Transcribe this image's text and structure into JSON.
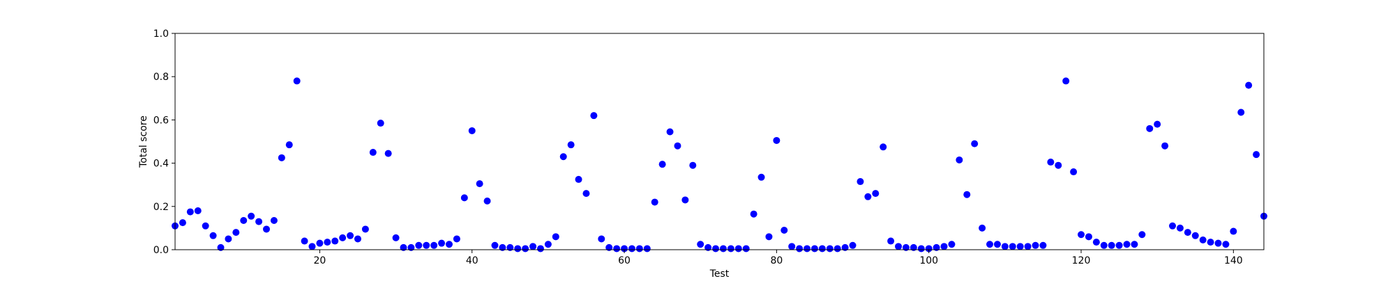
{
  "chart_data": {
    "type": "scatter",
    "title": "",
    "xlabel": "Test",
    "ylabel": "Total score",
    "xlim": [
      1,
      144
    ],
    "ylim": [
      0.0,
      1.0
    ],
    "xticks": [
      20,
      40,
      60,
      80,
      100,
      120,
      140
    ],
    "yticks": [
      0.0,
      0.2,
      0.4,
      0.6,
      0.8,
      1.0
    ],
    "grid": false,
    "marker_color": "#0000ff",
    "series": [
      {
        "x": [
          1,
          2,
          3,
          4,
          5,
          6,
          7,
          8,
          9,
          10,
          11,
          12,
          13,
          14,
          15,
          16,
          17,
          18,
          19,
          20,
          21,
          22,
          23,
          24,
          25,
          26,
          27,
          28,
          29,
          30,
          31,
          32,
          33,
          34,
          35,
          36,
          37,
          38,
          39,
          40,
          41,
          42,
          43,
          44,
          45,
          46,
          47,
          48,
          49,
          50,
          51,
          52,
          53,
          54,
          55,
          56,
          57,
          58,
          59,
          60,
          61,
          62,
          63,
          64,
          65,
          66,
          67,
          68,
          69,
          70,
          71,
          72,
          73,
          74,
          75,
          76,
          77,
          78,
          79,
          80,
          81,
          82,
          83,
          84,
          85,
          86,
          87,
          88,
          89,
          90,
          91,
          92,
          93,
          94,
          95,
          96,
          97,
          98,
          99,
          100,
          101,
          102,
          103,
          104,
          105,
          106,
          107,
          108,
          109,
          110,
          111,
          112,
          113,
          114,
          115,
          116,
          117,
          118,
          119,
          120,
          121,
          122,
          123,
          124,
          125,
          126,
          127,
          128,
          129,
          130,
          131,
          132,
          133,
          134,
          135,
          136,
          137,
          138,
          139,
          140,
          141,
          142,
          143,
          144
        ],
        "y": [
          0.11,
          0.125,
          0.175,
          0.18,
          0.11,
          0.065,
          0.01,
          0.05,
          0.08,
          0.135,
          0.155,
          0.13,
          0.095,
          0.135,
          0.425,
          0.485,
          0.78,
          0.04,
          0.015,
          0.03,
          0.035,
          0.04,
          0.055,
          0.065,
          0.05,
          0.095,
          0.45,
          0.585,
          0.445,
          0.055,
          0.01,
          0.01,
          0.02,
          0.02,
          0.02,
          0.03,
          0.025,
          0.05,
          0.24,
          0.55,
          0.305,
          0.225,
          0.02,
          0.01,
          0.01,
          0.005,
          0.005,
          0.015,
          0.005,
          0.025,
          0.06,
          0.43,
          0.485,
          0.325,
          0.26,
          0.62,
          0.05,
          0.01,
          0.005,
          0.005,
          0.005,
          0.005,
          0.005,
          0.22,
          0.395,
          0.545,
          0.48,
          0.23,
          0.39,
          0.025,
          0.01,
          0.005,
          0.005,
          0.005,
          0.005,
          0.005,
          0.165,
          0.335,
          0.06,
          0.505,
          0.09,
          0.015,
          0.005,
          0.005,
          0.005,
          0.005,
          0.005,
          0.005,
          0.01,
          0.02,
          0.315,
          0.245,
          0.26,
          0.475,
          0.04,
          0.015,
          0.01,
          0.01,
          0.005,
          0.005,
          0.01,
          0.015,
          0.025,
          0.415,
          0.255,
          0.49,
          0.1,
          0.025,
          0.025,
          0.015,
          0.015,
          0.015,
          0.015,
          0.02,
          0.02,
          0.405,
          0.39,
          0.78,
          0.36,
          0.07,
          0.06,
          0.035,
          0.02,
          0.02,
          0.02,
          0.025,
          0.025,
          0.07,
          0.56,
          0.58,
          0.48,
          0.11,
          0.1,
          0.08,
          0.065,
          0.045,
          0.035,
          0.03,
          0.025,
          0.085,
          0.635,
          0.76,
          0.44,
          0.155
        ]
      }
    ]
  }
}
